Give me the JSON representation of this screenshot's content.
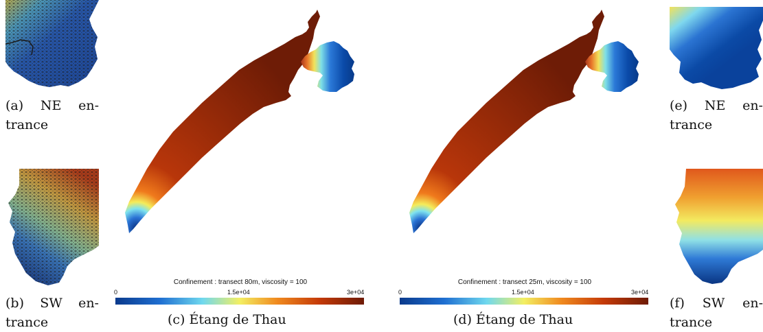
{
  "subfigures": {
    "a": {
      "label": "(a)",
      "text1": "NE",
      "text2": "en-",
      "text3": "trance"
    },
    "b": {
      "label": "(b)",
      "text1": "SW",
      "text2": "en-",
      "text3": "trance"
    },
    "c": {
      "caption": "(c) Étang de Thau"
    },
    "d": {
      "caption": "(d) Étang de Thau"
    },
    "e": {
      "label": "(e)",
      "text1": "NE",
      "text2": "en-",
      "text3": "trance"
    },
    "f": {
      "label": "(f)",
      "text1": "SW",
      "text2": "en-",
      "text3": "trance"
    }
  },
  "colorbar_c": {
    "title": "Confinement : transect 80m, viscosity = 100",
    "min": "0",
    "mid": "1.5e+04",
    "max": "3e+04"
  },
  "colorbar_d": {
    "title": "Confinement : transect 25m, viscosity = 100",
    "min": "0",
    "mid": "1.5e+04",
    "max": "3e+04"
  },
  "colormap": [
    "#08306b",
    "#1f6fd1",
    "#5fd3f0",
    "#f5f060",
    "#f08020",
    "#b02a05",
    "#6b1a05"
  ]
}
